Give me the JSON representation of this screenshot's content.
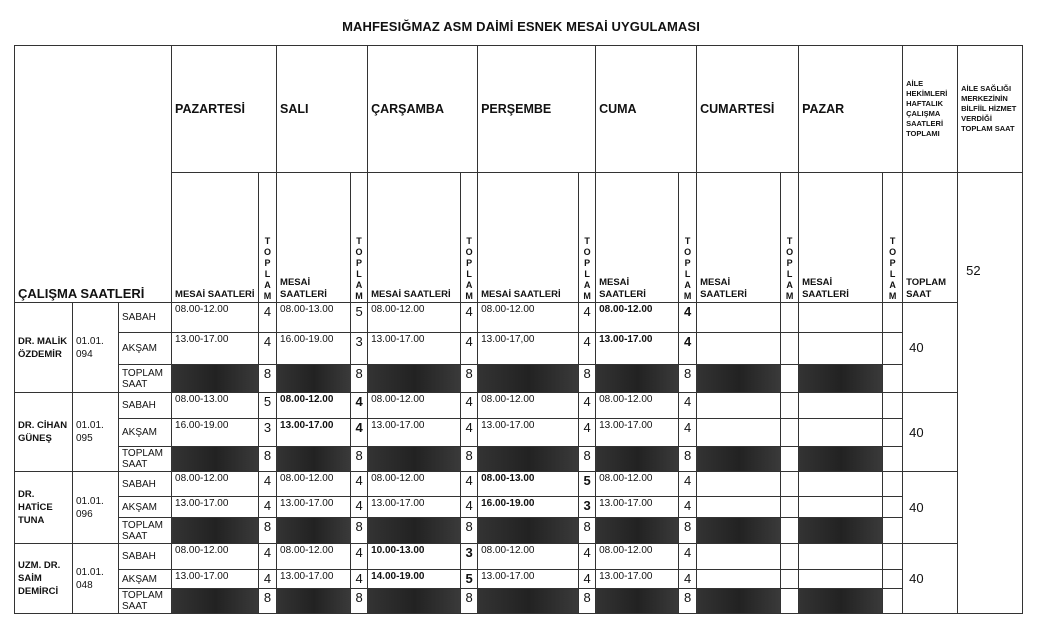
{
  "title": "MAHFESIĞMAZ ASM DAİMİ ESNEK MESAİ UYGULAMASI",
  "header": {
    "calisma_saatleri": "ÇALIŞMA SAATLERİ",
    "days": [
      "PAZARTESİ",
      "SALI",
      "ÇARŞAMBA",
      "PERŞEMBE",
      "CUMA",
      "CUMARTESİ",
      "PAZAR"
    ],
    "mesai_label": "MESAİ SAATLERİ",
    "toplam_vertical": "T O P L A M",
    "weekly_header": "AİLE HEKİMLERİ HAFTALIK ÇALIŞMA SAATLERİ TOPLAMI",
    "asm_header": "AİLE SAĞLIĞI MERKEZİNİN BİLFİİL HİZMET VERDİĞİ TOPLAM SAAT",
    "toplam_saat": "TOPLAM SAAT"
  },
  "shift_labels": {
    "sabah": "SABAH",
    "aksam": "AKŞAM",
    "toplam": "TOPLAM SAAT"
  },
  "asm_total": "52",
  "doctors": [
    {
      "name": "DR. MALİK ÖZDEMİR",
      "code": "01.01. 094",
      "bold_name": false,
      "weekly_total": "40",
      "sabah": [
        {
          "h": "08.00-12.00",
          "t": "4"
        },
        {
          "h": "08.00-13.00",
          "t": "5"
        },
        {
          "h": "08.00-12.00",
          "t": "4"
        },
        {
          "h": "08.00-12.00",
          "t": "4"
        },
        {
          "h": "08.00-12.00",
          "t": "4",
          "bold": true
        },
        {
          "h": "",
          "t": ""
        },
        {
          "h": "",
          "t": ""
        }
      ],
      "aksam": [
        {
          "h": "13.00-17.00",
          "t": "4"
        },
        {
          "h": "16.00-19.00",
          "t": "3"
        },
        {
          "h": "13.00-17.00",
          "t": "4"
        },
        {
          "h": "13.00-17,00",
          "t": "4"
        },
        {
          "h": "13.00-17.00",
          "t": "4",
          "bold": true
        },
        {
          "h": "",
          "t": ""
        },
        {
          "h": "",
          "t": ""
        }
      ],
      "toplam": [
        "8",
        "8",
        "8",
        "8",
        "8",
        "",
        ""
      ]
    },
    {
      "name": "DR. CİHAN GÜNEŞ",
      "code": "01.01. 095",
      "bold_name": false,
      "weekly_total": "40",
      "sabah": [
        {
          "h": "08.00-13.00",
          "t": "5"
        },
        {
          "h": "08.00-12.00",
          "t": "4",
          "bold": true
        },
        {
          "h": "08.00-12.00",
          "t": "4"
        },
        {
          "h": "08.00-12.00",
          "t": "4"
        },
        {
          "h": "08.00-12.00",
          "t": "4"
        },
        {
          "h": "",
          "t": ""
        },
        {
          "h": "",
          "t": ""
        }
      ],
      "aksam": [
        {
          "h": "16.00-19.00",
          "t": "3"
        },
        {
          "h": "13.00-17.00",
          "t": "4",
          "bold": true
        },
        {
          "h": "13.00-17.00",
          "t": "4"
        },
        {
          "h": "13.00-17.00",
          "t": "4"
        },
        {
          "h": "13.00-17.00",
          "t": "4"
        },
        {
          "h": "",
          "t": ""
        },
        {
          "h": "",
          "t": ""
        }
      ],
      "toplam": [
        "8",
        "8",
        "8",
        "8",
        "8",
        "",
        ""
      ]
    },
    {
      "name": "DR. HATİCE TUNA",
      "code": "01.01. 096",
      "bold_name": false,
      "weekly_total": "40",
      "sabah": [
        {
          "h": "08.00-12.00",
          "t": "4"
        },
        {
          "h": "08.00-12.00",
          "t": "4"
        },
        {
          "h": "08.00-12.00",
          "t": "4"
        },
        {
          "h": "08.00-13.00",
          "t": "5",
          "bold": true
        },
        {
          "h": "08.00-12.00",
          "t": "4"
        },
        {
          "h": "",
          "t": ""
        },
        {
          "h": "",
          "t": ""
        }
      ],
      "aksam": [
        {
          "h": "13.00-17.00",
          "t": "4"
        },
        {
          "h": "13.00-17.00",
          "t": "4"
        },
        {
          "h": "13.00-17.00",
          "t": "4"
        },
        {
          "h": "16.00-19.00",
          "t": "3",
          "bold": true
        },
        {
          "h": "13.00-17.00",
          "t": "4"
        },
        {
          "h": "",
          "t": ""
        },
        {
          "h": "",
          "t": ""
        }
      ],
      "toplam": [
        "8",
        "8",
        "8",
        "8",
        "8",
        "",
        ""
      ]
    },
    {
      "name": "UZM. DR. SAİM DEMİRCİ",
      "code": "01.01. 048",
      "bold_name": true,
      "weekly_total": "40",
      "sabah": [
        {
          "h": "08.00-12.00",
          "t": "4"
        },
        {
          "h": "08.00-12.00",
          "t": "4"
        },
        {
          "h": "10.00-13.00",
          "t": "3",
          "bold": true
        },
        {
          "h": "08.00-12.00",
          "t": "4"
        },
        {
          "h": "08.00-12.00",
          "t": "4"
        },
        {
          "h": "",
          "t": ""
        },
        {
          "h": "",
          "t": ""
        }
      ],
      "aksam": [
        {
          "h": "13.00-17.00",
          "t": "4"
        },
        {
          "h": "13.00-17.00",
          "t": "4"
        },
        {
          "h": "14.00-19.00",
          "t": "5",
          "bold": true
        },
        {
          "h": "13.00-17.00",
          "t": "4"
        },
        {
          "h": "13.00-17.00",
          "t": "4"
        },
        {
          "h": "",
          "t": ""
        },
        {
          "h": "",
          "t": ""
        }
      ],
      "toplam": [
        "8",
        "8",
        "8",
        "8",
        "8",
        "",
        ""
      ]
    }
  ]
}
